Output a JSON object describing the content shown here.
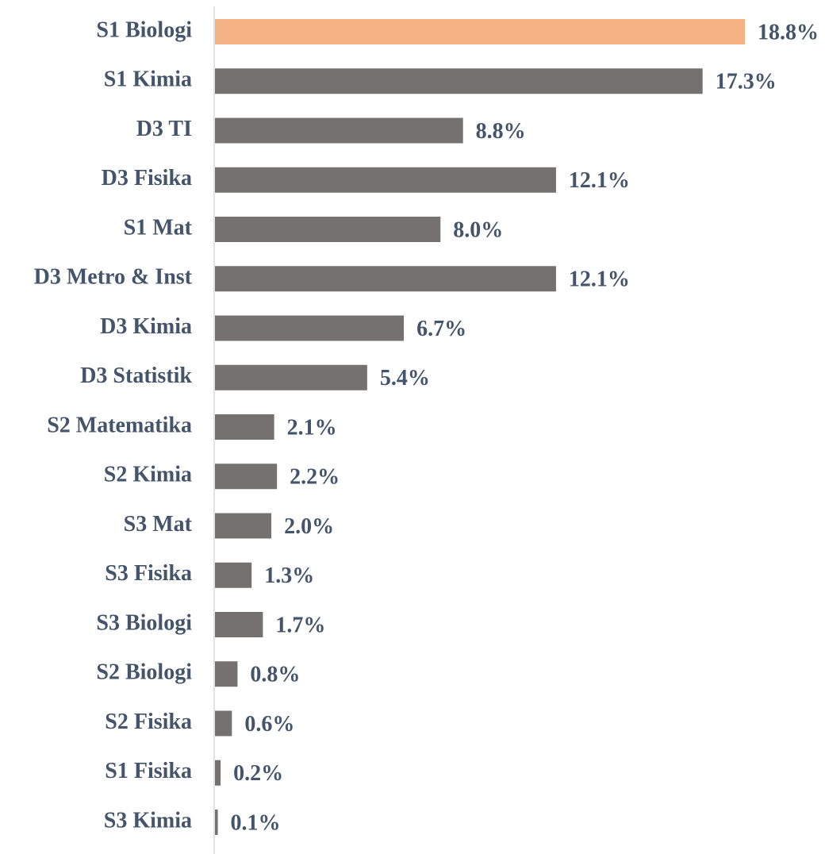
{
  "chart_data": {
    "type": "bar",
    "orientation": "horizontal",
    "categories": [
      "S1 Biologi",
      "S1 Kimia",
      "D3 TI",
      "D3 Fisika",
      "S1 Mat",
      "D3 Metro & Inst",
      "D3 Kimia",
      "D3 Statistik",
      "S2 Matematika",
      "S2 Kimia",
      "S3 Mat",
      "S3 Fisika",
      "S3 Biologi",
      "S2 Biologi",
      "S2 Fisika",
      "S1 Fisika",
      "S3 Kimia"
    ],
    "values": [
      18.8,
      17.3,
      8.8,
      12.1,
      8.0,
      12.1,
      6.7,
      5.4,
      2.1,
      2.2,
      2.0,
      1.3,
      1.7,
      0.8,
      0.6,
      0.2,
      0.1
    ],
    "value_labels": [
      "18.8%",
      "17.3%",
      "8.8%",
      "12.1%",
      "8.0%",
      "12.1%",
      "6.7%",
      "5.4%",
      "2.1%",
      "2.2%",
      "2.0%",
      "1.3%",
      "1.7%",
      "0.8%",
      "0.6%",
      "0.2%",
      "0.1%"
    ],
    "colors": [
      "#f4b183",
      "#767171",
      "#767171",
      "#767171",
      "#767171",
      "#767171",
      "#767171",
      "#767171",
      "#767171",
      "#767171",
      "#767171",
      "#767171",
      "#767171",
      "#767171",
      "#767171",
      "#767171",
      "#767171"
    ]
  }
}
